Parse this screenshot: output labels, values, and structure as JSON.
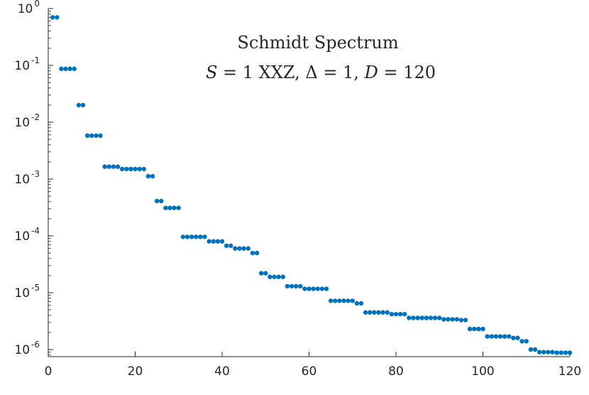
{
  "chart_data": {
    "type": "scatter",
    "title": "Schmidt Spectrum",
    "subtitle": "S = 1 XXZ, Δ = 1, D = 120",
    "xlabel": "",
    "ylabel": "",
    "xlim": [
      0,
      120
    ],
    "ylim": [
      7.5e-07,
      1
    ],
    "yscale": "log",
    "grid": false,
    "marker_color": "#0072BD",
    "x_ticks": [
      0,
      20,
      40,
      60,
      80,
      100,
      120
    ],
    "x_tick_labels": [
      "0",
      "20",
      "40",
      "60",
      "80",
      "100",
      "120"
    ],
    "y_ticks": [
      1,
      0.1,
      0.01,
      0.001,
      0.0001,
      1e-05,
      1e-06
    ],
    "y_tick_labels": [
      {
        "base": "10",
        "exp": "0"
      },
      {
        "base": "10",
        "exp": "-1"
      },
      {
        "base": "10",
        "exp": "-2"
      },
      {
        "base": "10",
        "exp": "-3"
      },
      {
        "base": "10",
        "exp": "-4"
      },
      {
        "base": "10",
        "exp": "-5"
      },
      {
        "base": "10",
        "exp": "-6"
      }
    ],
    "x": [
      1,
      2,
      3,
      4,
      5,
      6,
      7,
      8,
      9,
      10,
      11,
      12,
      13,
      14,
      15,
      16,
      17,
      18,
      19,
      20,
      21,
      22,
      23,
      24,
      25,
      26,
      27,
      28,
      29,
      30,
      31,
      32,
      33,
      34,
      35,
      36,
      37,
      38,
      39,
      40,
      41,
      42,
      43,
      44,
      45,
      46,
      47,
      48,
      49,
      50,
      51,
      52,
      53,
      54,
      55,
      56,
      57,
      58,
      59,
      60,
      61,
      62,
      63,
      64,
      65,
      66,
      67,
      68,
      69,
      70,
      71,
      72,
      73,
      74,
      75,
      76,
      77,
      78,
      79,
      80,
      81,
      82,
      83,
      84,
      85,
      86,
      87,
      88,
      89,
      90,
      91,
      92,
      93,
      94,
      95,
      96,
      97,
      98,
      99,
      100,
      101,
      102,
      103,
      104,
      105,
      106,
      107,
      108,
      109,
      110,
      111,
      112,
      113,
      114,
      115,
      116,
      117,
      118,
      119,
      120
    ],
    "y": [
      0.7,
      0.7,
      0.087,
      0.087,
      0.087,
      0.087,
      0.02,
      0.02,
      0.0058,
      0.0058,
      0.0058,
      0.0058,
      0.00165,
      0.00165,
      0.00165,
      0.00165,
      0.0015,
      0.0015,
      0.0015,
      0.0015,
      0.0015,
      0.0015,
      0.00112,
      0.00112,
      0.00041,
      0.00041,
      0.00031,
      0.00031,
      0.00031,
      0.00031,
      9.6e-05,
      9.6e-05,
      9.6e-05,
      9.6e-05,
      9.6e-05,
      9.6e-05,
      8e-05,
      8e-05,
      8e-05,
      8e-05,
      6.7e-05,
      6.7e-05,
      6e-05,
      6e-05,
      6e-05,
      6e-05,
      5e-05,
      5e-05,
      2.2e-05,
      2.2e-05,
      1.9e-05,
      1.9e-05,
      1.9e-05,
      1.9e-05,
      1.3e-05,
      1.3e-05,
      1.3e-05,
      1.3e-05,
      1.17e-05,
      1.17e-05,
      1.17e-05,
      1.17e-05,
      1.17e-05,
      1.17e-05,
      7.2e-06,
      7.2e-06,
      7.2e-06,
      7.2e-06,
      7.2e-06,
      7.2e-06,
      6.5e-06,
      6.5e-06,
      4.5e-06,
      4.5e-06,
      4.5e-06,
      4.5e-06,
      4.5e-06,
      4.5e-06,
      4.2e-06,
      4.2e-06,
      4.2e-06,
      4.2e-06,
      3.6e-06,
      3.6e-06,
      3.6e-06,
      3.6e-06,
      3.6e-06,
      3.6e-06,
      3.6e-06,
      3.6e-06,
      3.4e-06,
      3.4e-06,
      3.4e-06,
      3.4e-06,
      3.3e-06,
      3.3e-06,
      2.3e-06,
      2.3e-06,
      2.3e-06,
      2.3e-06,
      1.7e-06,
      1.7e-06,
      1.7e-06,
      1.7e-06,
      1.7e-06,
      1.7e-06,
      1.6e-06,
      1.6e-06,
      1.4e-06,
      1.4e-06,
      1e-06,
      1e-06,
      9e-07,
      9e-07,
      9e-07,
      9e-07,
      8.8e-07,
      8.8e-07,
      8.8e-07,
      8.8e-07
    ]
  }
}
